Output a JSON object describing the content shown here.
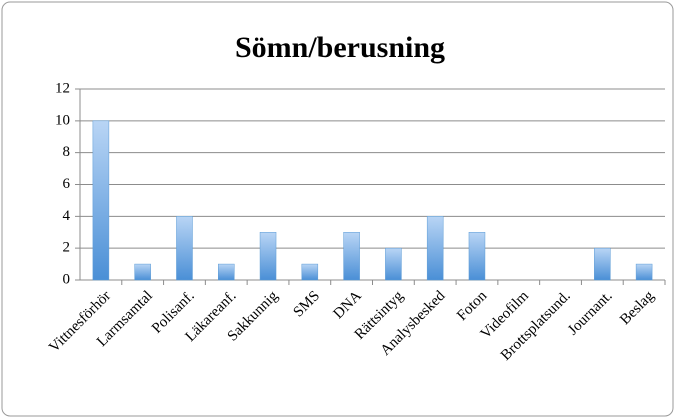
{
  "chart_data": {
    "type": "bar",
    "title": "Sömn/berusning",
    "categories": [
      "Vittnesförhör",
      "Larmsamtal",
      "Polisanf.",
      "Läkareanf.",
      "Sakkunnig",
      "SMS",
      "DNA",
      "Rättsintyg",
      "Analysbesked",
      "Foton",
      "Videofilm",
      "Brottsplatsund.",
      "Journant.",
      "Beslag"
    ],
    "values": [
      10,
      1,
      4,
      1,
      3,
      1,
      3,
      2,
      4,
      3,
      0,
      0,
      2,
      1
    ],
    "color": "#5b9bd5",
    "ylim": [
      0,
      12
    ],
    "yticks": [
      0,
      2,
      4,
      6,
      8,
      10,
      12
    ],
    "grid": true
  }
}
